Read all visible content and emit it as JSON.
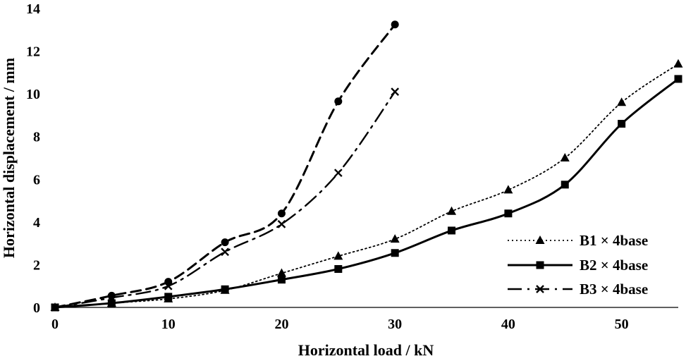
{
  "chart_data": {
    "type": "line",
    "title": "",
    "xlabel": "Horizontal load  / kN",
    "ylabel": "Horizontal displacement  / mm",
    "xlim": [
      0,
      55
    ],
    "ylim": [
      0,
      14
    ],
    "xticks": [
      "0",
      "10",
      "20",
      "30",
      "40",
      "50"
    ],
    "xtick_values": [
      0,
      10,
      20,
      30,
      40,
      50
    ],
    "yticks": [
      "0",
      "2",
      "4",
      "6",
      "8",
      "10",
      "12",
      "14"
    ],
    "ytick_values": [
      0,
      2,
      4,
      6,
      8,
      10,
      12,
      14
    ],
    "grid": false,
    "legend_position": "bottom-right",
    "series": [
      {
        "name": "B1 × 4base",
        "marker": "triangle",
        "line_style": "dotted",
        "x": [
          0,
          5,
          10,
          15,
          20,
          25,
          30,
          35,
          40,
          45,
          50,
          55
        ],
        "y": [
          0,
          0.2,
          0.4,
          0.8,
          1.6,
          2.4,
          3.2,
          4.5,
          5.5,
          7.0,
          9.6,
          11.4
        ]
      },
      {
        "name": "B2 × 4base",
        "marker": "square",
        "line_style": "solid",
        "x": [
          0,
          5,
          10,
          15,
          20,
          25,
          30,
          35,
          40,
          45,
          50,
          55
        ],
        "y": [
          0,
          0.2,
          0.5,
          0.85,
          1.3,
          1.8,
          2.55,
          3.6,
          4.4,
          5.75,
          8.6,
          10.7
        ]
      },
      {
        "name": "B3 × 4base",
        "marker": "x",
        "line_style": "dash-dot",
        "x": [
          0,
          5,
          10,
          15,
          20,
          25,
          30
        ],
        "y": [
          0,
          0.45,
          1.0,
          2.6,
          3.9,
          6.3,
          10.1
        ]
      },
      {
        "name": "",
        "marker": "circle",
        "line_style": "dashed",
        "x": [
          0,
          5,
          10,
          15,
          20,
          25,
          30
        ],
        "y": [
          0,
          0.55,
          1.2,
          3.05,
          4.4,
          9.65,
          13.25
        ]
      }
    ]
  },
  "colors": {
    "series": "#000000",
    "axis": "#000000",
    "background": "#ffffff"
  }
}
